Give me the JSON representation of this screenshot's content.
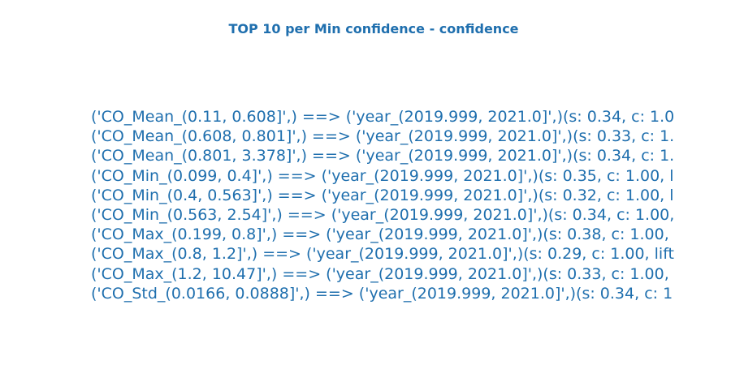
{
  "title": "TOP 10 per Min confidence - confidence",
  "rules": [
    "('CO_Mean_(0.11, 0.608]',) ==> ('year_(2019.999, 2021.0]',)(s: 0.34, c: 1.0",
    "('CO_Mean_(0.608, 0.801]',) ==> ('year_(2019.999, 2021.0]',)(s: 0.33, c: 1.",
    "('CO_Mean_(0.801, 3.378]',) ==> ('year_(2019.999, 2021.0]',)(s: 0.34, c: 1.",
    "('CO_Min_(0.099, 0.4]',) ==> ('year_(2019.999, 2021.0]',)(s: 0.35, c: 1.00, l",
    "('CO_Min_(0.4, 0.563]',) ==> ('year_(2019.999, 2021.0]',)(s: 0.32, c: 1.00, l",
    "('CO_Min_(0.563, 2.54]',) ==> ('year_(2019.999, 2021.0]',)(s: 0.34, c: 1.00,",
    "('CO_Max_(0.199, 0.8]',) ==> ('year_(2019.999, 2021.0]',)(s: 0.38, c: 1.00,",
    "('CO_Max_(0.8, 1.2]',) ==> ('year_(2019.999, 2021.0]',)(s: 0.29, c: 1.00, lift",
    "('CO_Max_(1.2, 10.47]',) ==> ('year_(2019.999, 2021.0]',)(s: 0.33, c: 1.00,",
    "('CO_Std_(0.0166, 0.0888]',) ==> ('year_(2019.999, 2021.0]',)(s: 0.34, c: 1"
  ],
  "colors": {
    "text": "#1f6fae",
    "background": "#ffffff"
  }
}
